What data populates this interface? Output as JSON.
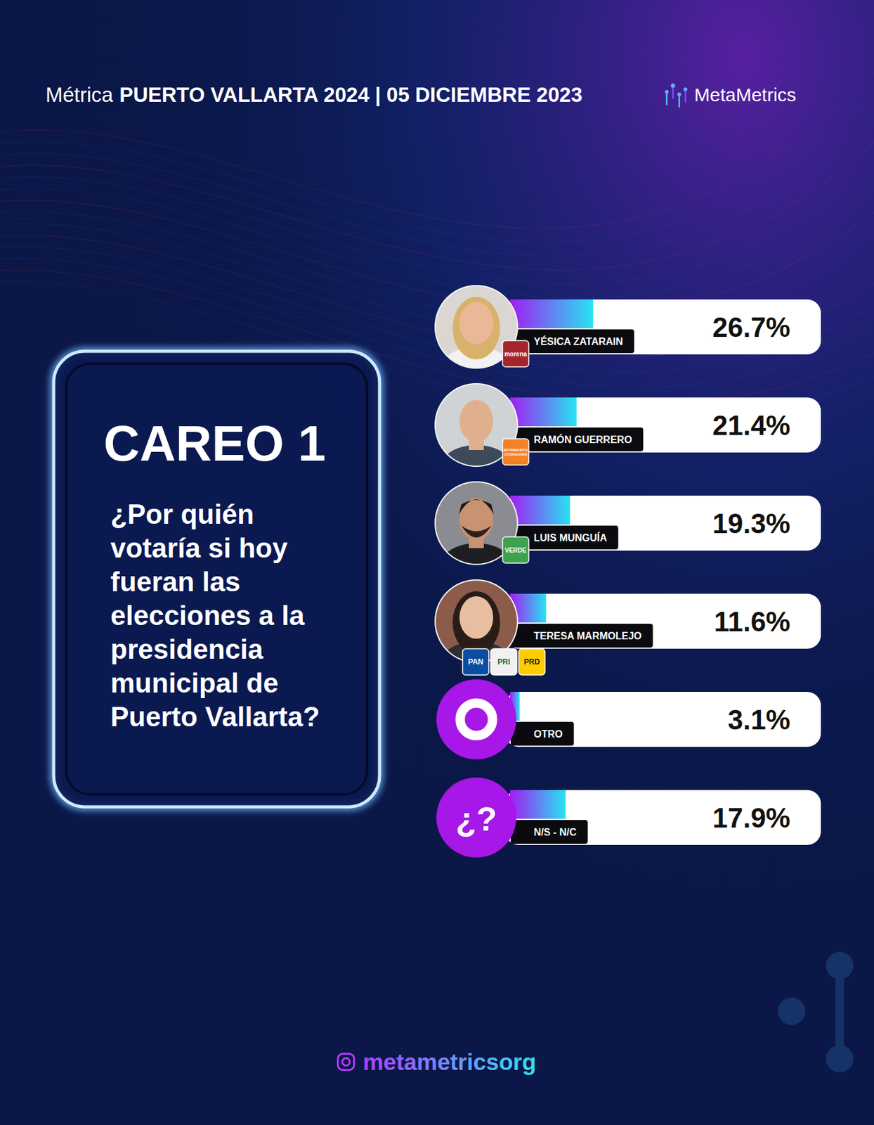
{
  "header": {
    "prefix": "Métrica",
    "title": "PUERTO VALLARTA 2024 | 05 DICIEMBRE 2023",
    "brand": "MetaMetrics"
  },
  "chart_data": {
    "type": "bar",
    "orientation": "horizontal",
    "title": "CAREO 1",
    "subtitle": "¿Por quién votaría si hoy fueran las elecciones a la presidencia municipal de Puerto Vallarta?",
    "categories": [
      "YÉSICA ZATARAIN",
      "RAMÓN GUERRERO",
      "LUIS MUNGUÍA",
      "TERESA MARMOLEJO",
      "OTRO",
      "N/S - N/C"
    ],
    "values": [
      26.7,
      21.4,
      19.3,
      11.6,
      3.1,
      17.9
    ],
    "value_labels": [
      "26.7%",
      "21.4%",
      "19.3%",
      "11.6%",
      "3.1%",
      "17.9%"
    ],
    "data_labels": true,
    "color": "#a21cf2",
    "xlim": [
      0,
      100
    ],
    "tick_labels": false,
    "party_labels": [
      [
        "morena"
      ],
      [
        "MOVIMIENTO CIUDADANO"
      ],
      [
        "VERDE"
      ],
      [
        "PAN",
        "PRI",
        "PRD"
      ],
      null,
      null
    ],
    "icon_labels": [
      null,
      null,
      null,
      null,
      null,
      "¿?"
    ]
  },
  "footer": {
    "handle": "metametricsorg"
  }
}
